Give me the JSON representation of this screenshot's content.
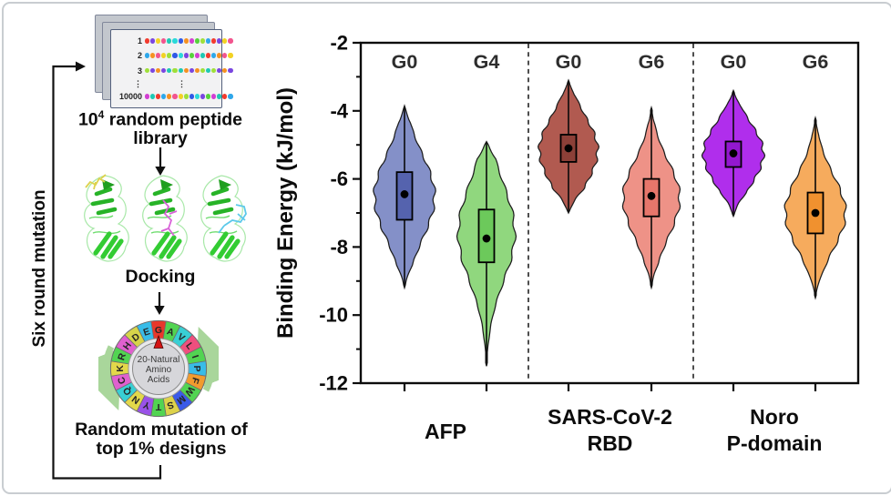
{
  "diagram": {
    "six_round_label": "Six round mutation",
    "library": {
      "rows": [
        "1",
        "2",
        "3",
        "⋮",
        "10000"
      ],
      "dots_per_row": 16,
      "dot_palette": [
        "#f23b2e",
        "#f59122",
        "#f2d224",
        "#57d23c",
        "#1fc8b4",
        "#2fa7ea",
        "#3059e6",
        "#7a46e0",
        "#d23fd2",
        "#f2558e",
        "#9fe03a",
        "#2bd9d9"
      ],
      "caption_base": "10",
      "caption_exp": "4",
      "caption_rest": " random peptide",
      "caption_line2": "library"
    },
    "docking_label": "Docking",
    "ligand_colors": [
      "#ddd24e",
      "#d863d8",
      "#5cc9ea"
    ],
    "ribbon_colors": {
      "loop": "#a8e8a8",
      "helix": "#27b327",
      "sheet": "#33cc33"
    },
    "wheel": {
      "center_lines": [
        "20-Natural",
        "Amino",
        "Acids"
      ],
      "pointer_color": "#d41414",
      "rotate_arrow_color": "#a9d69b",
      "segments": [
        {
          "letter": "G",
          "color": "#e8382c"
        },
        {
          "letter": "A",
          "color": "#52d452"
        },
        {
          "letter": "V",
          "color": "#38cfd4"
        },
        {
          "letter": "L",
          "color": "#ef4f7e"
        },
        {
          "letter": "I",
          "color": "#52d452"
        },
        {
          "letter": "P",
          "color": "#38bce8"
        },
        {
          "letter": "F",
          "color": "#f29b2e"
        },
        {
          "letter": "W",
          "color": "#52d452"
        },
        {
          "letter": "M",
          "color": "#3a5ae8"
        },
        {
          "letter": "S",
          "color": "#ddd24a"
        },
        {
          "letter": "T",
          "color": "#52d452"
        },
        {
          "letter": "Y",
          "color": "#9a52e8"
        },
        {
          "letter": "N",
          "color": "#e3d84a"
        },
        {
          "letter": "Q",
          "color": "#38cfd4"
        },
        {
          "letter": "C",
          "color": "#e060cf"
        },
        {
          "letter": "K",
          "color": "#e3d84a"
        },
        {
          "letter": "R",
          "color": "#52d452"
        },
        {
          "letter": "H",
          "color": "#e060cf"
        },
        {
          "letter": "D",
          "color": "#d6d44a"
        },
        {
          "letter": "E",
          "color": "#38bce8"
        }
      ]
    },
    "mutation_caption_line1": "Random mutation of",
    "mutation_caption_line2": "top 1% designs"
  },
  "chart_data": {
    "type": "violin",
    "ylabel": "Binding Energy (kJ/mol)",
    "units": "kJ/mol",
    "ylim": [
      -12,
      -2
    ],
    "yticks_major": [
      -2,
      -4,
      -6,
      -8,
      -10,
      -12
    ],
    "yticks_minor": [
      -3,
      -5,
      -7,
      -9,
      -11
    ],
    "grid": false,
    "separators": "dashed vertical lines between target groups",
    "groups": [
      {
        "label_lines": [
          "AFP"
        ],
        "violins": [
          {
            "generation": "G0",
            "fill": "#8490c8",
            "box_fill": "#5563ae",
            "tip_top": -3.85,
            "tip_bottom": -9.2,
            "mode": -6.5,
            "q3": -5.8,
            "median": -6.45,
            "q1": -7.2,
            "spread_upper": 1.2,
            "spread_lower": 1.25,
            "max_halfwidth": 33
          },
          {
            "generation": "G4",
            "fill": "#90d77e",
            "box_fill": "#6cc95b",
            "tip_top": -4.9,
            "tip_bottom": -11.5,
            "mode": -7.6,
            "q3": -6.9,
            "median": -7.75,
            "q1": -8.45,
            "spread_upper": 1.45,
            "spread_lower": 1.4,
            "max_halfwidth": 31
          }
        ]
      },
      {
        "label_lines": [
          "SARS-CoV-2",
          "RBD"
        ],
        "violins": [
          {
            "generation": "G0",
            "fill": "#b15a50",
            "box_fill": "#8c4038",
            "tip_top": -3.1,
            "tip_bottom": -7.0,
            "mode": -5.15,
            "q3": -4.7,
            "median": -5.1,
            "q1": -5.5,
            "spread_upper": 0.95,
            "spread_lower": 1.0,
            "max_halfwidth": 32
          },
          {
            "generation": "G6",
            "fill": "#ee9287",
            "box_fill": "#e7766b",
            "tip_top": -3.9,
            "tip_bottom": -9.2,
            "mode": -6.55,
            "q3": -6.0,
            "median": -6.5,
            "q1": -7.1,
            "spread_upper": 1.05,
            "spread_lower": 1.15,
            "max_halfwidth": 31
          }
        ]
      },
      {
        "label_lines": [
          "Noro",
          "P-domain"
        ],
        "violins": [
          {
            "generation": "G0",
            "fill": "#b02eec",
            "box_fill": "#9318cf",
            "tip_top": -3.4,
            "tip_bottom": -7.1,
            "mode": -5.25,
            "q3": -4.9,
            "median": -5.25,
            "q1": -5.65,
            "spread_upper": 0.85,
            "spread_lower": 0.9,
            "max_halfwidth": 33
          },
          {
            "generation": "G6",
            "fill": "#f6ab5d",
            "box_fill": "#f0912f",
            "tip_top": -4.2,
            "tip_bottom": -9.5,
            "mode": -7.0,
            "q3": -6.4,
            "median": -7.0,
            "q1": -7.6,
            "spread_upper": 1.1,
            "spread_lower": 1.05,
            "max_halfwidth": 33
          }
        ]
      }
    ]
  }
}
